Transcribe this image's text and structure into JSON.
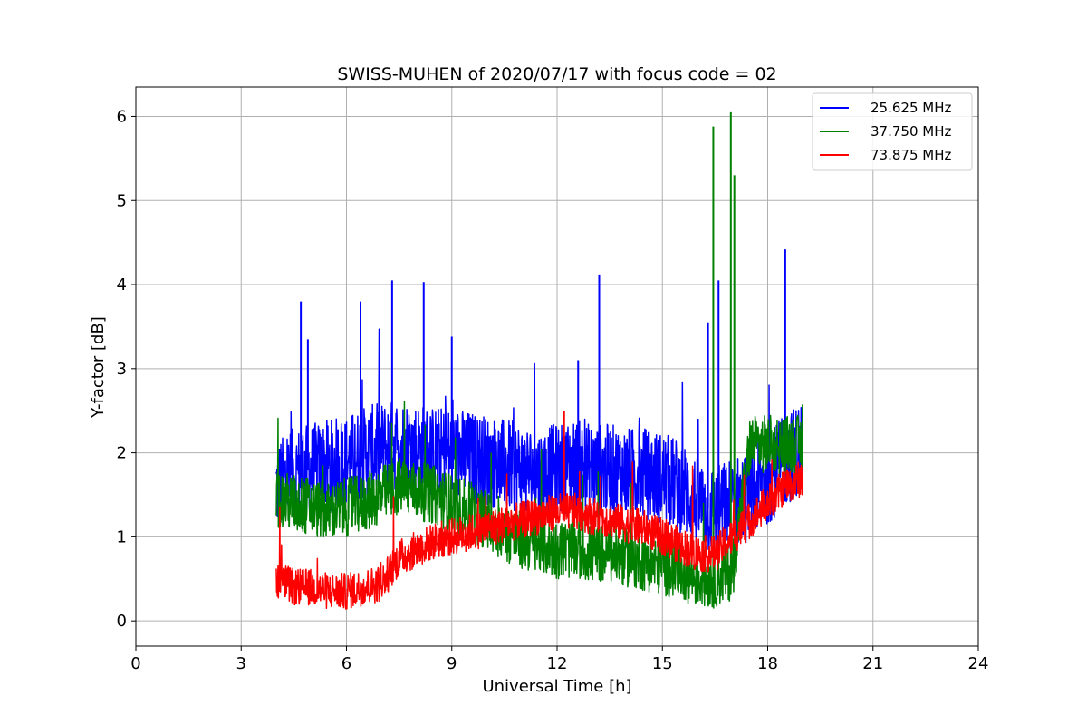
{
  "chart_data": {
    "type": "line",
    "title": "SWISS-MUHEN of 2020/07/17 with focus code = 02",
    "xlabel": "Universal Time [h]",
    "ylabel": "Y-factor [dB]",
    "xlim": [
      0,
      24
    ],
    "ylim": [
      -0.3,
      6.35
    ],
    "xticks": [
      0,
      3,
      6,
      9,
      12,
      15,
      18,
      21,
      24
    ],
    "yticks": [
      0,
      1,
      2,
      3,
      4,
      5,
      6
    ],
    "grid": true,
    "legend_position": "top-right",
    "series": [
      {
        "name": "25.625 MHz",
        "color": "#0000ff",
        "x": [
          4.0,
          4.5,
          5.0,
          5.5,
          6.0,
          6.5,
          7.0,
          7.5,
          8.0,
          8.5,
          9.0,
          9.5,
          10.0,
          10.5,
          11.0,
          11.5,
          12.0,
          12.5,
          13.0,
          13.5,
          14.0,
          14.5,
          15.0,
          15.5,
          16.0,
          16.5,
          17.0,
          17.5,
          18.0,
          18.5,
          19.0
        ],
        "y": [
          1.6,
          1.75,
          1.8,
          1.85,
          1.9,
          2.0,
          2.05,
          2.1,
          2.05,
          2.0,
          2.0,
          1.95,
          1.9,
          1.85,
          1.8,
          1.75,
          1.8,
          1.85,
          1.8,
          1.8,
          1.75,
          1.75,
          1.7,
          1.6,
          1.4,
          1.3,
          1.4,
          1.5,
          1.7,
          1.9,
          2.1
        ],
        "peaks": [
          [
            4.7,
            3.8
          ],
          [
            4.9,
            3.35
          ],
          [
            6.4,
            3.8
          ],
          [
            7.3,
            4.05
          ],
          [
            8.2,
            4.03
          ],
          [
            9.0,
            3.38
          ],
          [
            12.6,
            3.1
          ],
          [
            13.2,
            4.12
          ],
          [
            16.3,
            3.55
          ],
          [
            16.6,
            4.05
          ],
          [
            18.5,
            4.42
          ]
        ]
      },
      {
        "name": "37.750 MHz",
        "color": "#008000",
        "x": [
          4.0,
          4.5,
          5.0,
          5.5,
          6.0,
          6.5,
          7.0,
          7.5,
          8.0,
          8.5,
          9.0,
          9.5,
          10.0,
          10.5,
          11.0,
          11.5,
          12.0,
          12.5,
          13.0,
          13.5,
          14.0,
          14.5,
          15.0,
          15.5,
          16.0,
          16.5,
          17.0,
          17.5,
          18.0,
          18.5,
          19.0
        ],
        "y": [
          1.45,
          1.4,
          1.35,
          1.3,
          1.35,
          1.4,
          1.5,
          1.6,
          1.55,
          1.5,
          1.4,
          1.3,
          1.2,
          1.05,
          0.95,
          0.9,
          0.85,
          0.85,
          0.8,
          0.8,
          0.75,
          0.7,
          0.65,
          0.6,
          0.5,
          0.5,
          0.6,
          2.1,
          2.1,
          2.1,
          2.1
        ],
        "peaks": [
          [
            16.45,
            5.88
          ],
          [
            16.95,
            6.05
          ],
          [
            17.05,
            5.3
          ]
        ]
      },
      {
        "name": "73.875 MHz",
        "color": "#ff0000",
        "x": [
          4.0,
          4.5,
          5.0,
          5.5,
          6.0,
          6.5,
          7.0,
          7.5,
          8.0,
          8.5,
          9.0,
          9.5,
          10.0,
          10.5,
          11.0,
          11.5,
          12.0,
          12.5,
          13.0,
          13.5,
          14.0,
          14.5,
          15.0,
          15.5,
          16.0,
          16.5,
          17.0,
          17.5,
          18.0,
          18.5,
          19.0
        ],
        "y": [
          0.5,
          0.4,
          0.4,
          0.35,
          0.35,
          0.4,
          0.45,
          0.75,
          0.85,
          0.95,
          1.0,
          1.05,
          1.1,
          1.15,
          1.2,
          1.25,
          1.3,
          1.3,
          1.25,
          1.2,
          1.15,
          1.1,
          1.0,
          0.9,
          0.8,
          0.8,
          1.0,
          1.2,
          1.4,
          1.6,
          1.7
        ],
        "peaks": [
          [
            12.2,
            2.5
          ]
        ]
      }
    ]
  }
}
